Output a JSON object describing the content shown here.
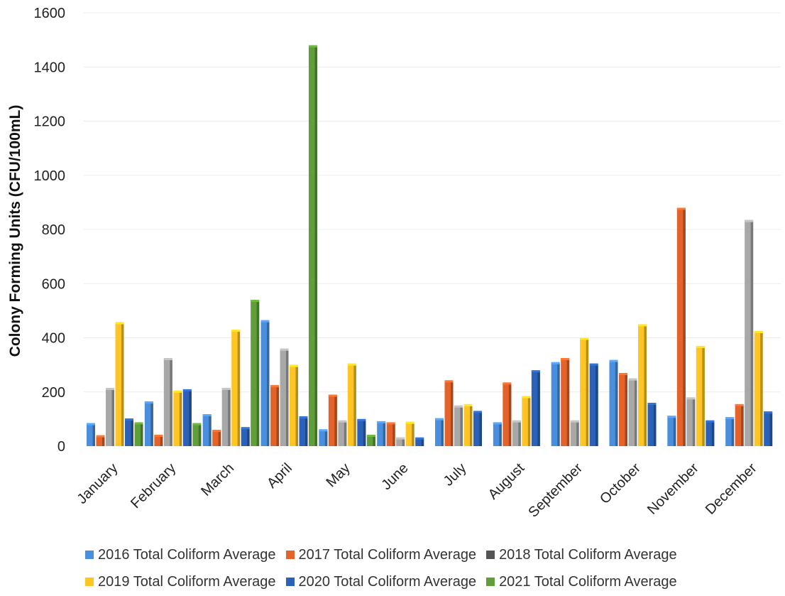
{
  "chart_data": {
    "type": "bar",
    "title": "",
    "xlabel": "",
    "ylabel": "Colony Forming Units (CFU/100mL)",
    "ylim": [
      0,
      1600
    ],
    "yticks": [
      "0",
      "200",
      "400",
      "600",
      "800",
      "1000",
      "1200",
      "1400",
      "1600"
    ],
    "grid": true,
    "legend_position": "bottom",
    "categories": [
      "January",
      "February",
      "March",
      "April",
      "May",
      "June",
      "July",
      "August",
      "September",
      "October",
      "November",
      "December"
    ],
    "series": [
      {
        "name": "2016 Total Coliform Average",
        "color": "#4a8fdd",
        "values": [
          85,
          165,
          118,
          465,
          62,
          92,
          103,
          88,
          310,
          318,
          112,
          107
        ]
      },
      {
        "name": "2017 Total Coliform Average",
        "color": "#e4632a",
        "values": [
          40,
          42,
          60,
          225,
          190,
          88,
          243,
          235,
          325,
          270,
          880,
          155
        ]
      },
      {
        "name": "2018 Total Coliform Average",
        "color": "#a8a8a8",
        "values": [
          215,
          325,
          215,
          360,
          95,
          32,
          150,
          95,
          95,
          250,
          180,
          835
        ]
      },
      {
        "name": "2019 Total Coliform Average",
        "color": "#fec524",
        "values": [
          458,
          205,
          430,
          300,
          305,
          90,
          155,
          185,
          400,
          450,
          370,
          425
        ]
      },
      {
        "name": "2020 Total Coliform Average",
        "color": "#2b62b8",
        "values": [
          102,
          210,
          70,
          110,
          100,
          32,
          130,
          280,
          305,
          160,
          95,
          128
        ]
      },
      {
        "name": "2021 Total Coliform Average",
        "color": "#5f9e3a",
        "values": [
          88,
          85,
          540,
          1480,
          42,
          null,
          null,
          null,
          null,
          null,
          null,
          null
        ]
      }
    ]
  }
}
